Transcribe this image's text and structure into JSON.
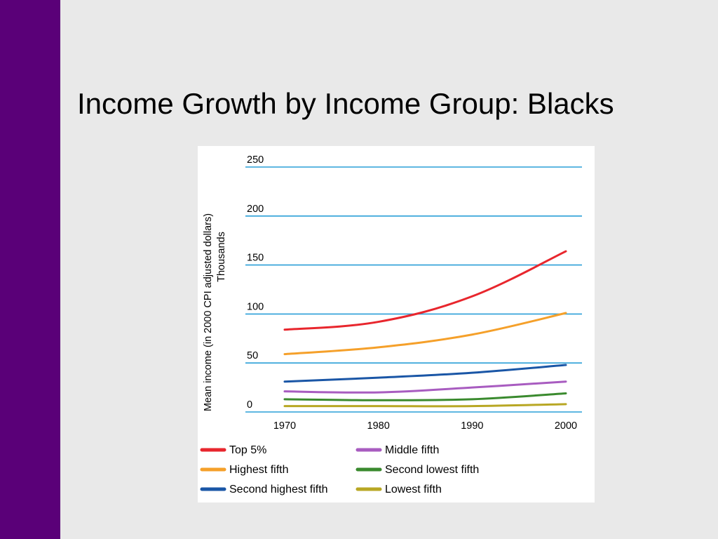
{
  "slide": {
    "title": "Income Growth by Income Group: Blacks"
  },
  "chart_data": {
    "type": "line",
    "ylabel": "Mean income (in 2000 CPI adjusted dollars)",
    "yunit": "Thousands",
    "x": [
      "1970",
      "1980",
      "1990",
      "2000"
    ],
    "yticks": [
      0,
      50,
      100,
      150,
      200,
      250
    ],
    "ylim": [
      0,
      250
    ],
    "grid": true,
    "legend_placement": "bottom",
    "series": [
      {
        "name": "Top 5%",
        "color": "#e8262d",
        "values": [
          84,
          92,
          118,
          164
        ]
      },
      {
        "name": "Highest fifth",
        "color": "#f5a02a",
        "values": [
          59,
          66,
          79,
          101
        ]
      },
      {
        "name": "Second highest fifth",
        "color": "#1a56a6",
        "values": [
          31,
          35,
          40,
          48
        ]
      },
      {
        "name": "Middle fifth",
        "color": "#a85cc0",
        "values": [
          21,
          20,
          25,
          31
        ]
      },
      {
        "name": "Second lowest fifth",
        "color": "#3a8a2e",
        "values": [
          13,
          12,
          13,
          19
        ]
      },
      {
        "name": "Lowest fifth",
        "color": "#b8a724",
        "values": [
          6,
          6,
          6,
          8
        ]
      }
    ],
    "legend_order": [
      [
        "Top 5%",
        "Middle fifth"
      ],
      [
        "Highest fifth",
        "Second lowest fifth"
      ],
      [
        "Second highest fifth",
        "Lowest fifth"
      ]
    ]
  }
}
